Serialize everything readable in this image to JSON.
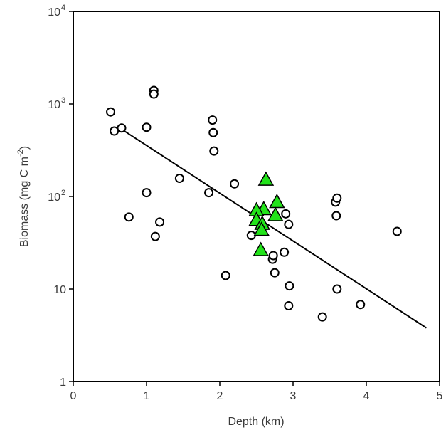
{
  "chart_data": {
    "type": "scatter",
    "xlabel": "Depth (km)",
    "ylabel": {
      "main": "Biomass (mg C m",
      "exp": "-2",
      "close": ")"
    },
    "xlim": [
      0,
      5
    ],
    "ylim": [
      1,
      10000
    ],
    "yscale": "log",
    "grid": false,
    "x_ticks": [
      {
        "value": 0,
        "label": "0"
      },
      {
        "value": 1,
        "label": "1"
      },
      {
        "value": 2,
        "label": "2"
      },
      {
        "value": 3,
        "label": "3"
      },
      {
        "value": 4,
        "label": "4"
      },
      {
        "value": 5,
        "label": "5"
      }
    ],
    "y_ticks": [
      {
        "value": 1,
        "label": "1",
        "exp": ""
      },
      {
        "value": 10,
        "label": "10",
        "exp": ""
      },
      {
        "value": 100,
        "label": "10",
        "exp": "2"
      },
      {
        "value": 1000,
        "label": "10",
        "exp": "3"
      },
      {
        "value": 10000,
        "label": "10",
        "exp": "4"
      }
    ],
    "series": [
      {
        "marker": "circle-open",
        "color": "#000000",
        "points": [
          [
            0.51,
            820
          ],
          [
            0.56,
            510
          ],
          [
            0.66,
            550
          ],
          [
            1.0,
            560
          ],
          [
            1.1,
            1400
          ],
          [
            1.1,
            1280
          ],
          [
            1.0,
            110
          ],
          [
            0.76,
            60
          ],
          [
            1.12,
            37
          ],
          [
            1.18,
            53
          ],
          [
            1.45,
            157
          ],
          [
            1.85,
            110
          ],
          [
            1.9,
            670
          ],
          [
            1.91,
            490
          ],
          [
            1.92,
            310
          ],
          [
            2.2,
            137
          ],
          [
            2.08,
            14
          ],
          [
            2.43,
            38
          ],
          [
            2.72,
            21
          ],
          [
            2.73,
            23
          ],
          [
            2.75,
            15
          ],
          [
            2.88,
            25
          ],
          [
            2.9,
            65
          ],
          [
            2.94,
            50
          ],
          [
            2.95,
            10.8
          ],
          [
            2.94,
            6.6
          ],
          [
            3.4,
            5.0
          ],
          [
            3.58,
            87
          ],
          [
            3.6,
            96
          ],
          [
            3.59,
            62
          ],
          [
            3.6,
            10
          ],
          [
            3.92,
            6.8
          ],
          [
            4.42,
            42
          ]
        ]
      },
      {
        "marker": "triangle",
        "color": "#22e31a",
        "points": [
          [
            2.63,
            150
          ],
          [
            2.78,
            86
          ],
          [
            2.6,
            72
          ],
          [
            2.5,
            70
          ],
          [
            2.76,
            62
          ],
          [
            2.5,
            55
          ],
          [
            2.58,
            50
          ],
          [
            2.57,
            43
          ],
          [
            2.56,
            26
          ]
        ]
      }
    ],
    "fit_line": {
      "x": [
        0.65,
        4.82
      ],
      "y": [
        540,
        3.8
      ],
      "color": "#000000"
    }
  }
}
